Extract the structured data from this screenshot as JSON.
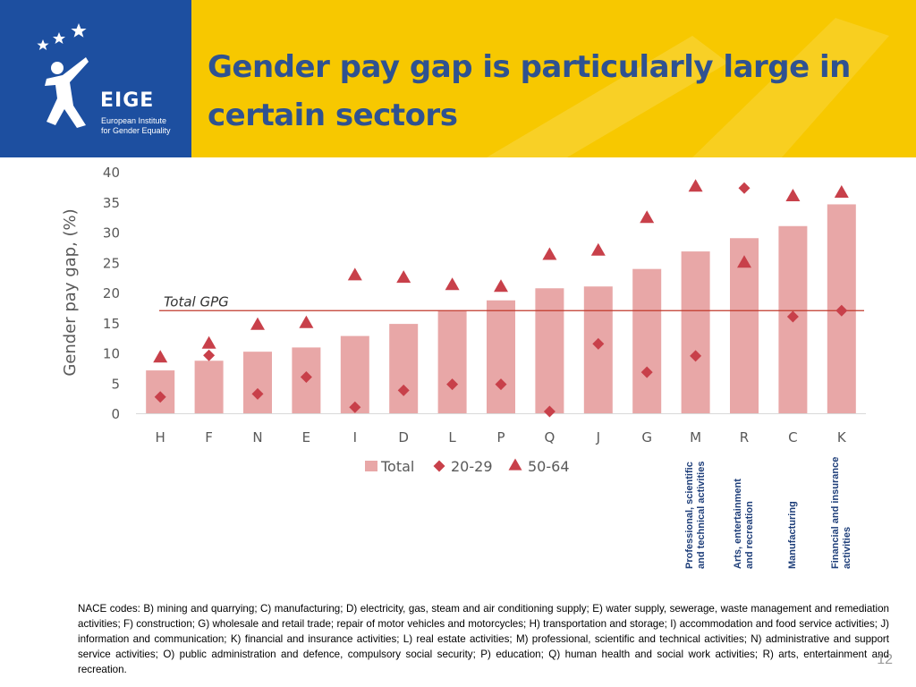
{
  "header": {
    "title": "Gender pay gap is particularly large in certain sectors",
    "logo": {
      "wordmark": "EIGE",
      "subtitle_line1": "European Institute",
      "subtitle_line2": "for Gender Equality",
      "background": "#1d4fa0"
    },
    "background": "#f7c800",
    "title_color": "#2f5291"
  },
  "chart_data": {
    "type": "bar",
    "categories": [
      "H",
      "F",
      "N",
      "E",
      "I",
      "D",
      "L",
      "P",
      "Q",
      "J",
      "G",
      "M",
      "R",
      "C",
      "K"
    ],
    "series": [
      {
        "name": "Total",
        "kind": "bar",
        "color": "#e8a7a7",
        "values": [
          7.1,
          8.7,
          10.2,
          10.9,
          12.8,
          14.8,
          17.0,
          18.7,
          20.7,
          21.0,
          23.9,
          26.8,
          29.0,
          31.0,
          34.6
        ]
      },
      {
        "name": "20-29",
        "kind": "diamond",
        "color": "#c8404a",
        "values": [
          2.7,
          9.6,
          3.2,
          6.0,
          1.0,
          3.8,
          4.8,
          4.8,
          0.3,
          11.5,
          6.8,
          9.5,
          37.3,
          16.0,
          17.0
        ]
      },
      {
        "name": "50-64",
        "kind": "triangle",
        "color": "#c8404a",
        "values": [
          9.3,
          11.6,
          14.7,
          15.0,
          22.9,
          22.5,
          21.3,
          21.0,
          26.3,
          27.0,
          32.4,
          37.6,
          25.0,
          36.0,
          36.6
        ]
      }
    ],
    "reference_line": {
      "label": "Total GPG",
      "value": 17.0,
      "color": "#c0392b"
    },
    "ylabel": "Gender pay gap, (%)",
    "ylim": [
      0,
      40
    ],
    "yticks": [
      0,
      5,
      10,
      15,
      20,
      25,
      30,
      35,
      40
    ],
    "grid": false,
    "legend": "bottom-left",
    "sector_labels": [
      {
        "category": "M",
        "line1": "Professional, scientific",
        "line2": "and technical activities"
      },
      {
        "category": "R",
        "line1": "Arts, entertainment",
        "line2": "and recreation"
      },
      {
        "category": "C",
        "line1": "Manufacturing",
        "line2": ""
      },
      {
        "category": "K",
        "line1": "Financial and insurance",
        "line2": "activities"
      }
    ]
  },
  "footnote": "NACE codes: B) mining and quarrying; C) manufacturing; D) electricity, gas, steam and air conditioning supply; E) water supply, sewerage, waste management and remediation activities; F) construction; G) wholesale and retail trade; repair of motor vehicles and motorcycles; H) transportation and storage; I) accommodation and food service activities; J) information and communication; K) financial and insurance activities; L) real estate activities; M) professional, scientific and technical activities; N) administrative and support service activities; O) public administration and defence, compulsory social security; P) education; Q) human health and social work activities; R) arts, entertainment and recreation.",
  "page_number": "12"
}
